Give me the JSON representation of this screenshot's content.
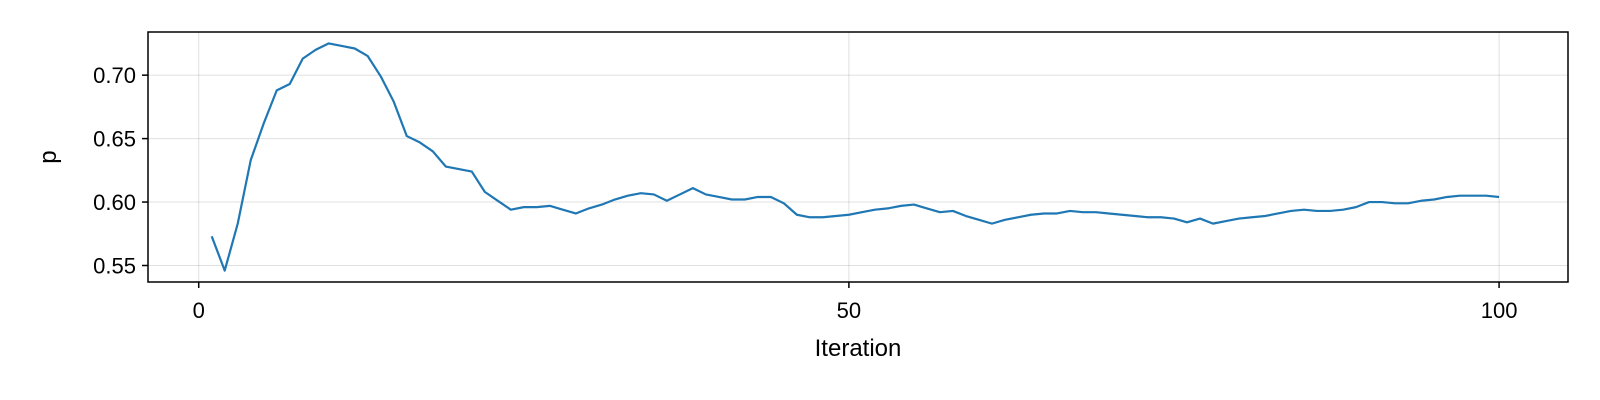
{
  "chart_data": {
    "type": "line",
    "title": "",
    "xlabel": "Iteration",
    "ylabel": "p",
    "xlim": [
      -3.9,
      105.3
    ],
    "ylim": [
      0.537,
      0.734
    ],
    "xticks": [
      0,
      50,
      100
    ],
    "xtick_labels": [
      "0",
      "50",
      "100"
    ],
    "yticks": [
      0.55,
      0.6,
      0.65,
      0.7
    ],
    "ytick_labels": [
      "0.55",
      "0.60",
      "0.65",
      "0.70"
    ],
    "grid": true,
    "legend": "none",
    "line_color": "#1f77b4",
    "series": [
      {
        "x": [
          1,
          2,
          3,
          4,
          5,
          6,
          7,
          8,
          9,
          10,
          11,
          12,
          13,
          14,
          15,
          16,
          17,
          18,
          19,
          20,
          21,
          22,
          23,
          24,
          25,
          26,
          27,
          28,
          29,
          30,
          31,
          32,
          33,
          34,
          35,
          36,
          37,
          38,
          39,
          40,
          41,
          42,
          43,
          44,
          45,
          46,
          47,
          48,
          49,
          50,
          51,
          52,
          53,
          54,
          55,
          56,
          57,
          58,
          59,
          60,
          61,
          62,
          63,
          64,
          65,
          66,
          67,
          68,
          69,
          70,
          71,
          72,
          73,
          74,
          75,
          76,
          77,
          78,
          79,
          80,
          81,
          82,
          83,
          84,
          85,
          86,
          87,
          88,
          89,
          90,
          91,
          92,
          93,
          94,
          95,
          96,
          97,
          98,
          99,
          100
        ],
        "values": [
          0.573,
          0.546,
          0.583,
          0.633,
          0.662,
          0.688,
          0.693,
          0.713,
          0.72,
          0.725,
          0.723,
          0.721,
          0.715,
          0.699,
          0.679,
          0.652,
          0.647,
          0.64,
          0.628,
          0.626,
          0.624,
          0.608,
          0.601,
          0.594,
          0.596,
          0.596,
          0.597,
          0.594,
          0.591,
          0.595,
          0.598,
          0.602,
          0.605,
          0.607,
          0.606,
          0.601,
          0.606,
          0.611,
          0.606,
          0.604,
          0.602,
          0.602,
          0.604,
          0.604,
          0.599,
          0.59,
          0.588,
          0.588,
          0.589,
          0.59,
          0.592,
          0.594,
          0.595,
          0.597,
          0.598,
          0.595,
          0.592,
          0.593,
          0.589,
          0.586,
          0.583,
          0.586,
          0.588,
          0.59,
          0.591,
          0.591,
          0.593,
          0.592,
          0.592,
          0.591,
          0.59,
          0.589,
          0.588,
          0.588,
          0.587,
          0.584,
          0.587,
          0.583,
          0.585,
          0.587,
          0.588,
          0.589,
          0.591,
          0.593,
          0.594,
          0.593,
          0.593,
          0.594,
          0.596,
          0.6,
          0.6,
          0.599,
          0.599,
          0.601,
          0.602,
          0.604,
          0.605,
          0.605,
          0.605,
          0.604
        ]
      }
    ]
  }
}
